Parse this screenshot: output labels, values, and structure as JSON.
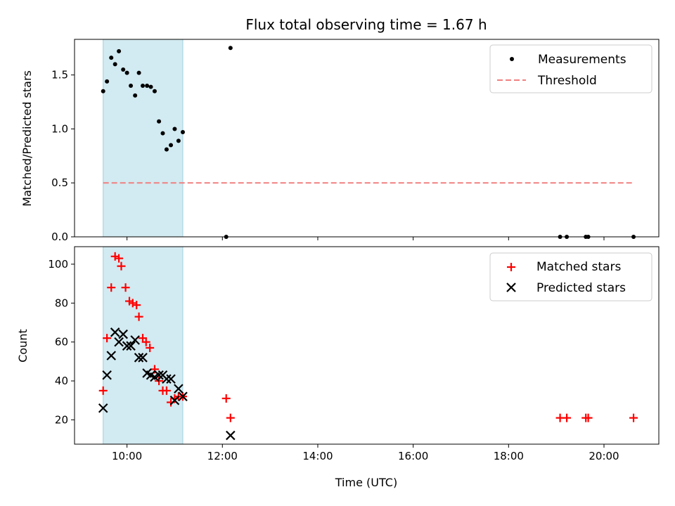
{
  "chart_data": [
    {
      "type": "scatter",
      "title": "Flux total observing time = 1.67 h",
      "ylabel": "Matched/Predicted stars",
      "xlabel": "",
      "x_unit": "hours UTC",
      "xlim": [
        8.9,
        21.15
      ],
      "ylim": [
        0,
        1.83
      ],
      "yticks": [
        0.0,
        0.5,
        1.0,
        1.5
      ],
      "ytick_labels": [
        "0.0",
        "0.5",
        "1.0",
        "1.5"
      ],
      "xticks": [
        10,
        12,
        14,
        16,
        18,
        20
      ],
      "shaded_span": [
        9.5,
        11.17
      ],
      "shaded_color": "#add8e6",
      "legend_position": "top-right",
      "series": [
        {
          "name": "Measurements",
          "marker": "dot",
          "color": "#000000",
          "x": [
            9.5,
            9.58,
            9.67,
            9.75,
            9.83,
            9.92,
            10.0,
            10.08,
            10.17,
            10.25,
            10.33,
            10.42,
            10.5,
            10.58,
            10.67,
            10.75,
            10.83,
            10.92,
            11.0,
            11.08,
            11.17,
            12.08,
            12.17,
            19.08,
            19.22,
            19.62,
            19.67,
            20.62
          ],
          "y": [
            1.35,
            1.44,
            1.66,
            1.6,
            1.72,
            1.55,
            1.52,
            1.4,
            1.31,
            1.52,
            1.4,
            1.4,
            1.39,
            1.35,
            1.07,
            0.96,
            0.81,
            0.85,
            1.0,
            0.89,
            0.97,
            0.0,
            1.75,
            0.0,
            0.0,
            0.0,
            0.0,
            0.0
          ]
        },
        {
          "name": "Threshold",
          "marker": "dashed-line",
          "color": "#f08080",
          "x": [
            9.5,
            20.62
          ],
          "y": [
            0.5,
            0.5
          ]
        }
      ]
    },
    {
      "type": "scatter",
      "title": "",
      "ylabel": "Count",
      "xlabel": "Time (UTC)",
      "x_unit": "hours UTC",
      "xlim": [
        8.9,
        21.15
      ],
      "ylim": [
        7.5,
        109
      ],
      "yticks": [
        20,
        40,
        60,
        80,
        100
      ],
      "xticks": [
        10,
        12,
        14,
        16,
        18,
        20
      ],
      "xtick_labels": [
        "10:00",
        "12:00",
        "14:00",
        "16:00",
        "18:00",
        "20:00"
      ],
      "shaded_span": [
        9.5,
        11.17
      ],
      "shaded_color": "#add8e6",
      "legend_position": "top-right",
      "series": [
        {
          "name": "Matched stars",
          "marker": "plus",
          "color": "#ff0000",
          "x": [
            9.5,
            9.58,
            9.67,
            9.75,
            9.83,
            9.88,
            9.97,
            10.05,
            10.12,
            10.2,
            10.25,
            10.33,
            10.4,
            10.48,
            10.58,
            10.67,
            10.75,
            10.83,
            10.92,
            11.0,
            11.08,
            11.17,
            12.08,
            12.17,
            19.08,
            19.22,
            19.62,
            19.67,
            20.62
          ],
          "y": [
            35,
            62,
            88,
            104,
            103,
            99,
            88,
            81,
            80,
            79,
            73,
            62,
            60,
            57,
            46,
            40,
            35,
            35,
            29,
            31,
            32,
            32,
            31,
            21,
            21,
            21,
            21,
            21,
            21
          ]
        },
        {
          "name": "Predicted stars",
          "marker": "x",
          "color": "#000000",
          "x": [
            9.5,
            9.58,
            9.67,
            9.75,
            9.83,
            9.92,
            10.0,
            10.08,
            10.17,
            10.25,
            10.33,
            10.42,
            10.5,
            10.58,
            10.67,
            10.75,
            10.83,
            10.92,
            11.0,
            11.08,
            11.17,
            12.17
          ],
          "y": [
            26,
            43,
            53,
            65,
            60,
            64,
            58,
            58,
            61,
            52,
            52,
            44,
            43,
            42,
            43,
            43,
            41,
            41,
            30,
            36,
            32,
            12
          ]
        }
      ]
    }
  ]
}
